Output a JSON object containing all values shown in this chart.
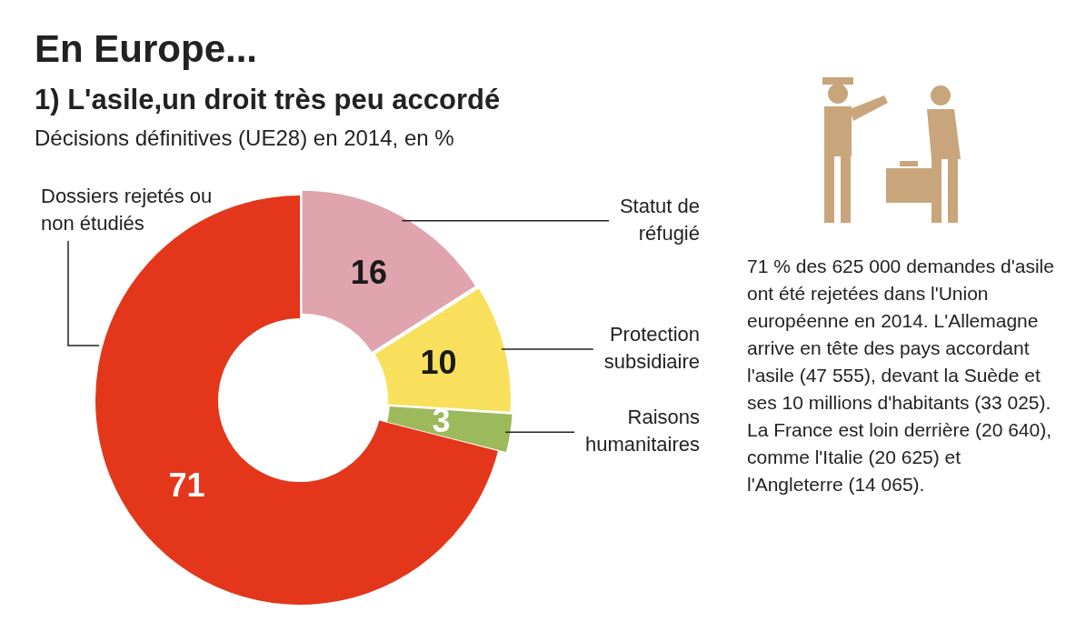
{
  "chart_data": {
    "type": "donut",
    "title": "En Europe...",
    "subtitle": "1) L'asile,un droit très peu accordé",
    "annotations": [
      "Décisions définitives (UE28) en 2014, en %",
      "71 % des 625 000 demandes d'asile ont été rejetées dans l'Union européenne en 2014. L'Allemagne arrive en tête des pays accordant l'asile (47 555), devant la Suède et ses 10 millions d'habitants (33 025). La France est loin derrière (20 640), comme l'Italie (20 625) et l'Angleterre (14 065)."
    ],
    "categories": [
      "Statut de réfugié",
      "Protection subsidiaire",
      "Raisons humanitaires",
      "Dossiers rejetés ou non étudiés"
    ],
    "values": [
      16,
      10,
      3,
      71
    ],
    "colors": [
      "#e0a4ae",
      "#f8e05c",
      "#9cb95c",
      "#e3361a"
    ],
    "data_labels": true
  }
}
